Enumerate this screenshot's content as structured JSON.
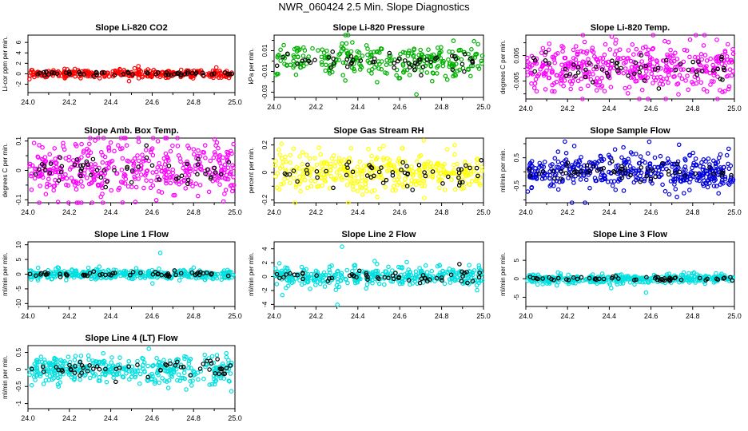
{
  "title": "NWR_060424  2.5 Min. Slope Diagnostics",
  "chart_data": [
    {
      "type": "scatter",
      "title": "Slope Li-820 CO2",
      "ylabel": "Li-cor ppm per min.",
      "xlim": [
        24.0,
        25.0
      ],
      "ylim": [
        -3.6,
        7.4
      ],
      "yticks": [
        -2,
        0,
        2,
        4,
        6
      ],
      "xticks": [
        "24.0",
        "24.2",
        "24.4",
        "24.6",
        "24.8",
        "25.0"
      ],
      "point_color": "#ff0000",
      "spread": 0.35,
      "n": 320
    },
    {
      "type": "scatter",
      "title": "Slope Li-820 Pressure",
      "ylabel": "kPa per min.",
      "xlim": [
        24.0,
        25.0
      ],
      "ylim": [
        -0.035,
        0.025
      ],
      "yticks": [
        -0.03,
        -0.01,
        0.01
      ],
      "yticks_minor": [
        -0.02,
        0,
        0.02
      ],
      "xticks": [
        "24.0",
        "24.2",
        "24.4",
        "24.6",
        "24.8",
        "25.0"
      ],
      "point_color": "#00b000",
      "spread": 0.008,
      "n": 280
    },
    {
      "type": "scatter",
      "title": "Slope Li-820 Temp.",
      "ylabel": "degrees C per min.",
      "xlim": [
        24.0,
        25.0
      ],
      "ylim": [
        -0.012,
        0.013
      ],
      "yticks": [
        -0.005,
        0.005
      ],
      "yticks_minor": [
        -0.01,
        0,
        0.01
      ],
      "xticks": [
        "24.0",
        "24.2",
        "24.4",
        "24.6",
        "24.8",
        "25.0"
      ],
      "point_color": "#ff00ff",
      "spread": 0.0045,
      "n": 420
    },
    {
      "type": "scatter",
      "title": "Slope Amb. Box Temp.",
      "ylabel": "degrees C per min.",
      "xlim": [
        24.0,
        25.0
      ],
      "ylim": [
        -0.11,
        0.11
      ],
      "yticks": [
        -0.1,
        0.0,
        0.1
      ],
      "yticks_minor": [
        -0.05,
        0.05
      ],
      "xticks": [
        "24.0",
        "24.2",
        "24.4",
        "24.6",
        "24.8",
        "25.0"
      ],
      "point_color": "#ff00ff",
      "spread": 0.045,
      "n": 420
    },
    {
      "type": "scatter",
      "title": "Slope Gas Stream RH",
      "ylabel": "percent per min.",
      "xlim": [
        24.0,
        25.0
      ],
      "ylim": [
        -0.22,
        0.25
      ],
      "yticks": [
        -0.2,
        0.0,
        0.2
      ],
      "yticks_minor": [
        -0.1,
        0.1
      ],
      "xticks": [
        "24.0",
        "24.2",
        "24.4",
        "24.6",
        "24.8",
        "25.0"
      ],
      "point_color": "#ffff00",
      "spread": 0.07,
      "n": 360
    },
    {
      "type": "scatter",
      "title": "Slope Sample Flow",
      "ylabel": "ml/min per min.",
      "xlim": [
        24.0,
        25.0
      ],
      "ylim": [
        -1.1,
        1.2
      ],
      "yticks": [
        -0.5,
        0.5
      ],
      "yticks_minor": [
        -1,
        0,
        1
      ],
      "xticks": [
        "24.0",
        "24.2",
        "24.4",
        "24.6",
        "24.8",
        "25.0"
      ],
      "point_color": "#0000dd",
      "spread": 0.3,
      "n": 420
    },
    {
      "type": "scatter",
      "title": "Slope Line 1 Flow",
      "ylabel": "ml/min per min.",
      "xlim": [
        24.0,
        25.0
      ],
      "ylim": [
        -11,
        11
      ],
      "yticks": [
        -10,
        -5,
        0,
        5,
        10
      ],
      "xticks": [
        "24.0",
        "24.2",
        "24.4",
        "24.6",
        "24.8",
        "25.0"
      ],
      "point_color": "#00e0e0",
      "spread": 0.8,
      "n": 380
    },
    {
      "type": "scatter",
      "title": "Slope Line 2 Flow",
      "ylabel": "ml/min per min.",
      "xlim": [
        24.0,
        25.0
      ],
      "ylim": [
        -4.3,
        5
      ],
      "yticks": [
        -4,
        -2,
        0,
        2,
        4
      ],
      "xticks": [
        "24.0",
        "24.2",
        "24.4",
        "24.6",
        "24.8",
        "25.0"
      ],
      "point_color": "#00e0e0",
      "spread": 0.7,
      "n": 380
    },
    {
      "type": "scatter",
      "title": "Slope Line 3 Flow",
      "ylabel": "ml/min per min.",
      "xlim": [
        24.0,
        25.0
      ],
      "ylim": [
        -7.5,
        10
      ],
      "yticks": [
        -5,
        0,
        5
      ],
      "xticks": [
        "24.0",
        "24.2",
        "24.4",
        "24.6",
        "24.8",
        "25.0"
      ],
      "point_color": "#00e0e0",
      "spread": 0.6,
      "n": 380
    },
    {
      "type": "scatter",
      "title": "Slope Line 4 (LT) Flow",
      "ylabel": "ml/min per min.",
      "xlim": [
        24.0,
        25.0
      ],
      "ylim": [
        -1.15,
        0.7
      ],
      "yticks": [
        -1.0,
        -0.5,
        0.0,
        0.5
      ],
      "xticks": [
        "24.0",
        "24.2",
        "24.4",
        "24.6",
        "24.8",
        "25.0"
      ],
      "point_color": "#00e0e0",
      "spread": 0.2,
      "n": 380
    }
  ]
}
